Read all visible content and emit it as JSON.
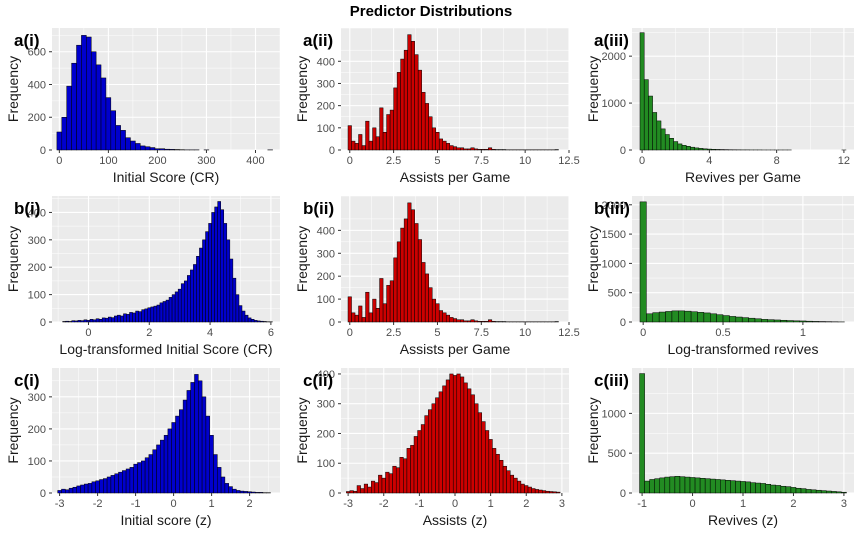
{
  "title": "Predictor Distributions",
  "colors": {
    "panel_bg": "#EBEBEB",
    "grid": "#FFFFFF",
    "bar_outline": "#000000",
    "blue": "#0000CD",
    "red": "#CC0000",
    "green": "#228B22"
  },
  "chart_data": [
    {
      "tag": "a(i)",
      "type": "bar",
      "color": "blue",
      "xlabel": "Initial Score (CR)",
      "ylabel": "Frequency",
      "xlim": [
        -15,
        450
      ],
      "ylim": [
        0,
        745
      ],
      "xticks": [
        0,
        100,
        200,
        300,
        400
      ],
      "yticks": [
        0,
        200,
        400,
        600
      ],
      "binwidth": 10,
      "x": [
        0,
        10,
        20,
        30,
        40,
        50,
        60,
        70,
        80,
        90,
        100,
        110,
        120,
        130,
        140,
        150,
        160,
        170,
        180,
        190,
        200,
        210,
        220,
        230,
        240,
        250,
        260,
        270,
        280,
        290,
        300,
        310,
        320,
        330,
        340,
        350,
        360,
        370,
        380,
        390,
        400,
        410,
        420,
        430
      ],
      "values": [
        110,
        200,
        390,
        530,
        640,
        700,
        690,
        600,
        520,
        440,
        320,
        240,
        150,
        120,
        75,
        55,
        40,
        25,
        20,
        15,
        8,
        8,
        5,
        4,
        3,
        2,
        1,
        1,
        1,
        0,
        1,
        0,
        0,
        0,
        0,
        0,
        0,
        0,
        0,
        0,
        0,
        0,
        0,
        1
      ]
    },
    {
      "tag": "a(ii)",
      "type": "bar",
      "color": "red",
      "xlabel": "Assists per Game",
      "ylabel": "Frequency",
      "xlim": [
        -0.5,
        12.5
      ],
      "ylim": [
        0,
        550
      ],
      "xticks": [
        0,
        2.5,
        5,
        7.5,
        10,
        12.5
      ],
      "yticks": [
        0,
        100,
        200,
        300,
        400
      ],
      "binwidth": 0.2,
      "x": [
        0,
        0.2,
        0.4,
        0.6,
        0.8,
        1,
        1.2,
        1.4,
        1.6,
        1.8,
        2,
        2.2,
        2.4,
        2.6,
        2.8,
        3,
        3.2,
        3.4,
        3.6,
        3.8,
        4,
        4.2,
        4.4,
        4.6,
        4.8,
        5,
        5.2,
        5.4,
        5.6,
        5.8,
        6,
        6.2,
        6.4,
        6.6,
        6.8,
        7,
        7.2,
        7.4,
        7.6,
        7.8,
        8,
        8.2,
        8.4,
        8.6,
        8.8,
        9,
        9.2,
        9.4,
        9.6,
        9.8,
        10,
        10.2,
        10.4,
        10.6,
        10.8,
        11,
        11.2,
        11.4,
        11.6,
        11.8
      ],
      "values": [
        110,
        40,
        30,
        70,
        20,
        130,
        40,
        100,
        60,
        190,
        80,
        160,
        180,
        280,
        350,
        410,
        450,
        520,
        490,
        430,
        360,
        260,
        210,
        150,
        100,
        80,
        50,
        40,
        30,
        20,
        15,
        10,
        10,
        5,
        5,
        10,
        5,
        3,
        3,
        3,
        10,
        3,
        2,
        2,
        2,
        1,
        1,
        1,
        1,
        1,
        1,
        1,
        1,
        1,
        1,
        1,
        1,
        1,
        1,
        2
      ]
    },
    {
      "tag": "a(iii)",
      "type": "bar",
      "color": "green",
      "xlabel": "Revives per Game",
      "ylabel": "Frequency",
      "xlim": [
        -0.6,
        12.6
      ],
      "ylim": [
        0,
        2600
      ],
      "xticks": [
        0,
        4,
        8,
        12
      ],
      "yticks": [
        0,
        1000,
        2000
      ],
      "binwidth": 0.25,
      "x": [
        0,
        0.25,
        0.5,
        0.75,
        1,
        1.25,
        1.5,
        1.75,
        2,
        2.25,
        2.5,
        2.75,
        3,
        3.25,
        3.5,
        3.75,
        4,
        4.25,
        4.5,
        4.75,
        5,
        5.25,
        5.5,
        5.75,
        6,
        6.25,
        6.5,
        6.75,
        7,
        7.25,
        7.5,
        7.75,
        8,
        8.25,
        8.5,
        8.75,
        9,
        9.25,
        9.5,
        9.75,
        10,
        10.25,
        10.5,
        10.75,
        11,
        11.25,
        11.5,
        11.75,
        12
      ],
      "values": [
        2500,
        1500,
        1150,
        800,
        620,
        450,
        330,
        250,
        180,
        130,
        100,
        80,
        60,
        45,
        35,
        25,
        20,
        15,
        12,
        10,
        8,
        6,
        5,
        4,
        3,
        3,
        2,
        2,
        2,
        1,
        1,
        1,
        1,
        1,
        1,
        1,
        0,
        0,
        0,
        0,
        0,
        0,
        0,
        0,
        0,
        0,
        0,
        0,
        1
      ]
    },
    {
      "tag": "b(i)",
      "type": "bar",
      "color": "blue",
      "xlabel": "Log-transformed Initial Score (CR)",
      "ylabel": "Frequency",
      "xlim": [
        -1.2,
        6.3
      ],
      "ylim": [
        0,
        460
      ],
      "xticks": [
        0,
        2,
        4,
        6
      ],
      "yticks": [
        0,
        100,
        200,
        300,
        400
      ],
      "binwidth": 0.1,
      "x": [
        -0.8,
        -0.7,
        -0.6,
        -0.5,
        -0.4,
        -0.3,
        -0.2,
        -0.1,
        0,
        0.1,
        0.2,
        0.3,
        0.4,
        0.5,
        0.6,
        0.7,
        0.8,
        0.9,
        1,
        1.1,
        1.2,
        1.3,
        1.4,
        1.5,
        1.6,
        1.7,
        1.8,
        1.9,
        2,
        2.1,
        2.2,
        2.3,
        2.4,
        2.5,
        2.6,
        2.7,
        2.8,
        2.9,
        3,
        3.1,
        3.2,
        3.3,
        3.4,
        3.5,
        3.6,
        3.7,
        3.8,
        3.9,
        4,
        4.1,
        4.2,
        4.3,
        4.4,
        4.5,
        4.6,
        4.7,
        4.8,
        4.9,
        5,
        5.1,
        5.2,
        5.3,
        5.4,
        5.5,
        5.6,
        5.7,
        5.8,
        5.9,
        6
      ],
      "values": [
        2,
        3,
        2,
        5,
        4,
        6,
        5,
        8,
        6,
        10,
        8,
        12,
        10,
        15,
        14,
        18,
        16,
        22,
        25,
        22,
        30,
        28,
        35,
        33,
        40,
        38,
        45,
        48,
        52,
        55,
        58,
        62,
        70,
        75,
        80,
        90,
        100,
        110,
        120,
        140,
        150,
        170,
        190,
        210,
        240,
        270,
        300,
        330,
        360,
        400,
        420,
        440,
        410,
        360,
        300,
        230,
        160,
        100,
        60,
        40,
        25,
        15,
        10,
        6,
        4,
        3,
        2,
        1,
        1
      ]
    },
    {
      "tag": "b(ii)",
      "type": "bar",
      "color": "red",
      "xlabel": "Assists per Game",
      "ylabel": "Frequency",
      "xlim": [
        -0.5,
        12.5
      ],
      "ylim": [
        0,
        550
      ],
      "xticks": [
        0,
        2.5,
        5,
        7.5,
        10,
        12.5
      ],
      "yticks": [
        0,
        100,
        200,
        300,
        400
      ],
      "binwidth": 0.2,
      "x": [
        0,
        0.2,
        0.4,
        0.6,
        0.8,
        1,
        1.2,
        1.4,
        1.6,
        1.8,
        2,
        2.2,
        2.4,
        2.6,
        2.8,
        3,
        3.2,
        3.4,
        3.6,
        3.8,
        4,
        4.2,
        4.4,
        4.6,
        4.8,
        5,
        5.2,
        5.4,
        5.6,
        5.8,
        6,
        6.2,
        6.4,
        6.6,
        6.8,
        7,
        7.2,
        7.4,
        7.6,
        7.8,
        8,
        8.2,
        8.4,
        8.6,
        8.8,
        9,
        9.2,
        9.4,
        9.6,
        9.8,
        10,
        10.2,
        10.4,
        10.6,
        10.8,
        11,
        11.2,
        11.4,
        11.6,
        11.8
      ],
      "values": [
        110,
        40,
        30,
        70,
        20,
        130,
        40,
        100,
        60,
        190,
        80,
        160,
        180,
        280,
        350,
        410,
        450,
        520,
        490,
        430,
        360,
        260,
        210,
        150,
        100,
        80,
        50,
        40,
        30,
        20,
        15,
        10,
        10,
        5,
        5,
        10,
        5,
        3,
        3,
        3,
        10,
        3,
        2,
        2,
        2,
        1,
        1,
        1,
        1,
        1,
        1,
        1,
        1,
        1,
        1,
        1,
        1,
        1,
        1,
        2
      ]
    },
    {
      "tag": "b(iii)",
      "type": "bar",
      "color": "green",
      "xlabel": "Log-transformed revives",
      "ylabel": "Frequency",
      "xlim": [
        -0.07,
        1.32
      ],
      "ylim": [
        0,
        2150
      ],
      "xticks": [
        0.0,
        0.5,
        1.0
      ],
      "yticks": [
        0,
        500,
        1000,
        1500,
        2000
      ],
      "binwidth": 0.04,
      "x": [
        0,
        0.04,
        0.08,
        0.12,
        0.16,
        0.2,
        0.24,
        0.28,
        0.32,
        0.36,
        0.4,
        0.44,
        0.48,
        0.52,
        0.56,
        0.6,
        0.64,
        0.68,
        0.72,
        0.76,
        0.8,
        0.84,
        0.88,
        0.92,
        0.96,
        1.0,
        1.04,
        1.08,
        1.12,
        1.16,
        1.2,
        1.24
      ],
      "values": [
        2050,
        140,
        160,
        170,
        180,
        190,
        190,
        185,
        175,
        165,
        155,
        140,
        125,
        110,
        95,
        85,
        75,
        65,
        55,
        45,
        40,
        35,
        30,
        25,
        20,
        18,
        14,
        10,
        8,
        6,
        4,
        2
      ]
    },
    {
      "tag": "c(i)",
      "type": "bar",
      "color": "blue",
      "xlabel": "Initial score (z)",
      "ylabel": "Frequency",
      "xlim": [
        -3.2,
        2.8
      ],
      "ylim": [
        0,
        390
      ],
      "xticks": [
        -3,
        -2,
        -1,
        0,
        1,
        2
      ],
      "yticks": [
        0,
        100,
        200,
        300
      ],
      "binwidth": 0.1,
      "x": [
        -3,
        -2.9,
        -2.8,
        -2.7,
        -2.6,
        -2.5,
        -2.4,
        -2.3,
        -2.2,
        -2.1,
        -2,
        -1.9,
        -1.8,
        -1.7,
        -1.6,
        -1.5,
        -1.4,
        -1.3,
        -1.2,
        -1.1,
        -1,
        -0.9,
        -0.8,
        -0.7,
        -0.6,
        -0.5,
        -0.4,
        -0.3,
        -0.2,
        -0.1,
        0,
        0.1,
        0.2,
        0.3,
        0.4,
        0.5,
        0.6,
        0.7,
        0.8,
        0.9,
        1,
        1.1,
        1.2,
        1.3,
        1.4,
        1.5,
        1.6,
        1.7,
        1.8,
        1.9,
        2,
        2.1,
        2.2,
        2.3,
        2.4,
        2.5
      ],
      "values": [
        8,
        12,
        10,
        15,
        18,
        22,
        25,
        28,
        30,
        35,
        38,
        42,
        45,
        50,
        55,
        60,
        65,
        70,
        75,
        80,
        90,
        95,
        100,
        110,
        120,
        135,
        150,
        165,
        180,
        200,
        220,
        240,
        260,
        290,
        320,
        345,
        370,
        350,
        300,
        240,
        180,
        120,
        80,
        50,
        30,
        20,
        12,
        8,
        6,
        5,
        4,
        3,
        2,
        2,
        1,
        1
      ]
    },
    {
      "tag": "c(ii)",
      "type": "bar",
      "color": "red",
      "xlabel": "Assists (z)",
      "ylabel": "Frequency",
      "xlim": [
        -3.2,
        3.2
      ],
      "ylim": [
        0,
        420
      ],
      "xticks": [
        -3,
        -2,
        -1,
        0,
        1,
        2,
        3
      ],
      "yticks": [
        0,
        100,
        200,
        300,
        400
      ],
      "binwidth": 0.1,
      "x": [
        -3,
        -2.9,
        -2.8,
        -2.7,
        -2.6,
        -2.5,
        -2.4,
        -2.3,
        -2.2,
        -2.1,
        -2,
        -1.9,
        -1.8,
        -1.7,
        -1.6,
        -1.5,
        -1.4,
        -1.3,
        -1.2,
        -1.1,
        -1,
        -0.9,
        -0.8,
        -0.7,
        -0.6,
        -0.5,
        -0.4,
        -0.3,
        -0.2,
        -0.1,
        0,
        0.1,
        0.2,
        0.3,
        0.4,
        0.5,
        0.6,
        0.7,
        0.8,
        0.9,
        1,
        1.1,
        1.2,
        1.3,
        1.4,
        1.5,
        1.6,
        1.7,
        1.8,
        1.9,
        2,
        2.1,
        2.2,
        2.3,
        2.4,
        2.5,
        2.6,
        2.7,
        2.8,
        2.9
      ],
      "values": [
        5,
        8,
        6,
        25,
        15,
        30,
        20,
        40,
        35,
        60,
        50,
        70,
        65,
        90,
        85,
        120,
        115,
        150,
        160,
        190,
        210,
        230,
        260,
        280,
        300,
        320,
        340,
        360,
        380,
        400,
        395,
        400,
        390,
        370,
        350,
        330,
        300,
        270,
        240,
        210,
        180,
        150,
        130,
        110,
        90,
        75,
        60,
        50,
        40,
        30,
        25,
        20,
        15,
        12,
        10,
        8,
        6,
        5,
        4,
        3
      ]
    },
    {
      "tag": "c(iii)",
      "type": "bar",
      "color": "green",
      "xlabel": "Revives (z)",
      "ylabel": "Frequency",
      "xlim": [
        -1.2,
        3.2
      ],
      "ylim": [
        0,
        1570
      ],
      "xticks": [
        -1,
        0,
        1,
        2,
        3
      ],
      "yticks": [
        0,
        500,
        1000
      ],
      "binwidth": 0.1,
      "x": [
        -1,
        -0.9,
        -0.8,
        -0.7,
        -0.6,
        -0.5,
        -0.4,
        -0.3,
        -0.2,
        -0.1,
        0,
        0.1,
        0.2,
        0.3,
        0.4,
        0.5,
        0.6,
        0.7,
        0.8,
        0.9,
        1,
        1.1,
        1.2,
        1.3,
        1.4,
        1.5,
        1.6,
        1.7,
        1.8,
        1.9,
        2,
        2.1,
        2.2,
        2.3,
        2.4,
        2.5,
        2.6,
        2.7,
        2.8,
        2.9,
        3
      ],
      "values": [
        1500,
        150,
        170,
        180,
        190,
        200,
        205,
        210,
        205,
        200,
        195,
        190,
        185,
        180,
        175,
        170,
        165,
        160,
        155,
        150,
        145,
        140,
        130,
        125,
        120,
        110,
        100,
        95,
        85,
        80,
        70,
        60,
        55,
        45,
        40,
        35,
        30,
        25,
        20,
        15,
        10
      ]
    }
  ]
}
